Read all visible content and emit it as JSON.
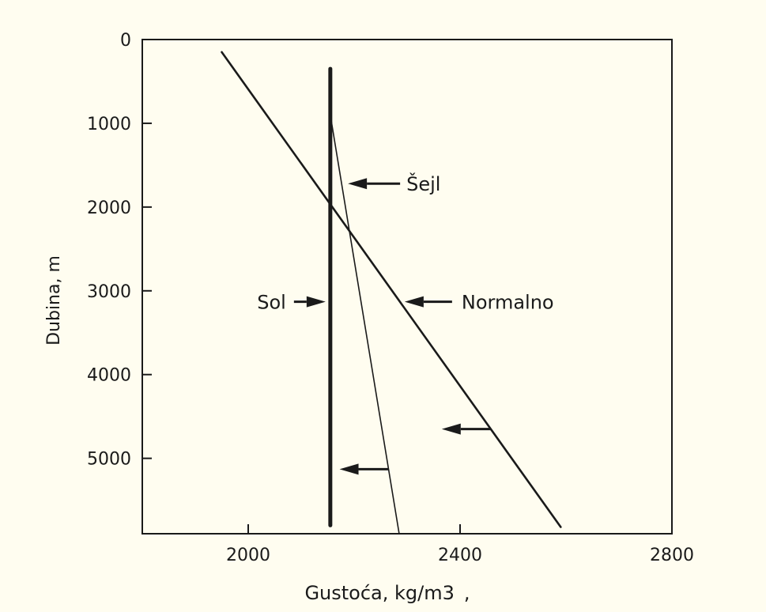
{
  "chart_data": {
    "type": "line",
    "xlabel": "Gustoća, kg/m3",
    "xlabel_suffix": ",",
    "ylabel": "Dubina, m",
    "xlim": [
      1800,
      2800
    ],
    "ylim": [
      0,
      5900
    ],
    "y_inverted": true,
    "x_ticks": [
      2000,
      2400,
      2800
    ],
    "y_ticks": [
      0,
      1000,
      2000,
      3000,
      4000,
      5000
    ],
    "grid": false,
    "series": [
      {
        "name": "Sol",
        "x": [
          2155,
          2155
        ],
        "y": [
          350,
          5800
        ]
      },
      {
        "name": "Šejl",
        "x": [
          2155,
          2285
        ],
        "y": [
          900,
          5900
        ]
      },
      {
        "name": "Normalno",
        "x": [
          1950,
          2590
        ],
        "y": [
          150,
          5820
        ]
      }
    ],
    "annotations": [
      {
        "text": "Šejl",
        "target_series": "Šejl",
        "depth": 1720
      },
      {
        "text": "Sol",
        "target_series": "Sol",
        "depth": 3130
      },
      {
        "text": "Normalno",
        "target_series": "Normalno",
        "depth": 3130
      }
    ],
    "unlabeled_arrows": [
      {
        "target_series": "Normalno",
        "depth": 4650
      },
      {
        "target_series": "Šejl",
        "depth": 5130
      }
    ],
    "colors": {
      "background": "#fffdf0",
      "ink": "#1a1a1a"
    }
  }
}
